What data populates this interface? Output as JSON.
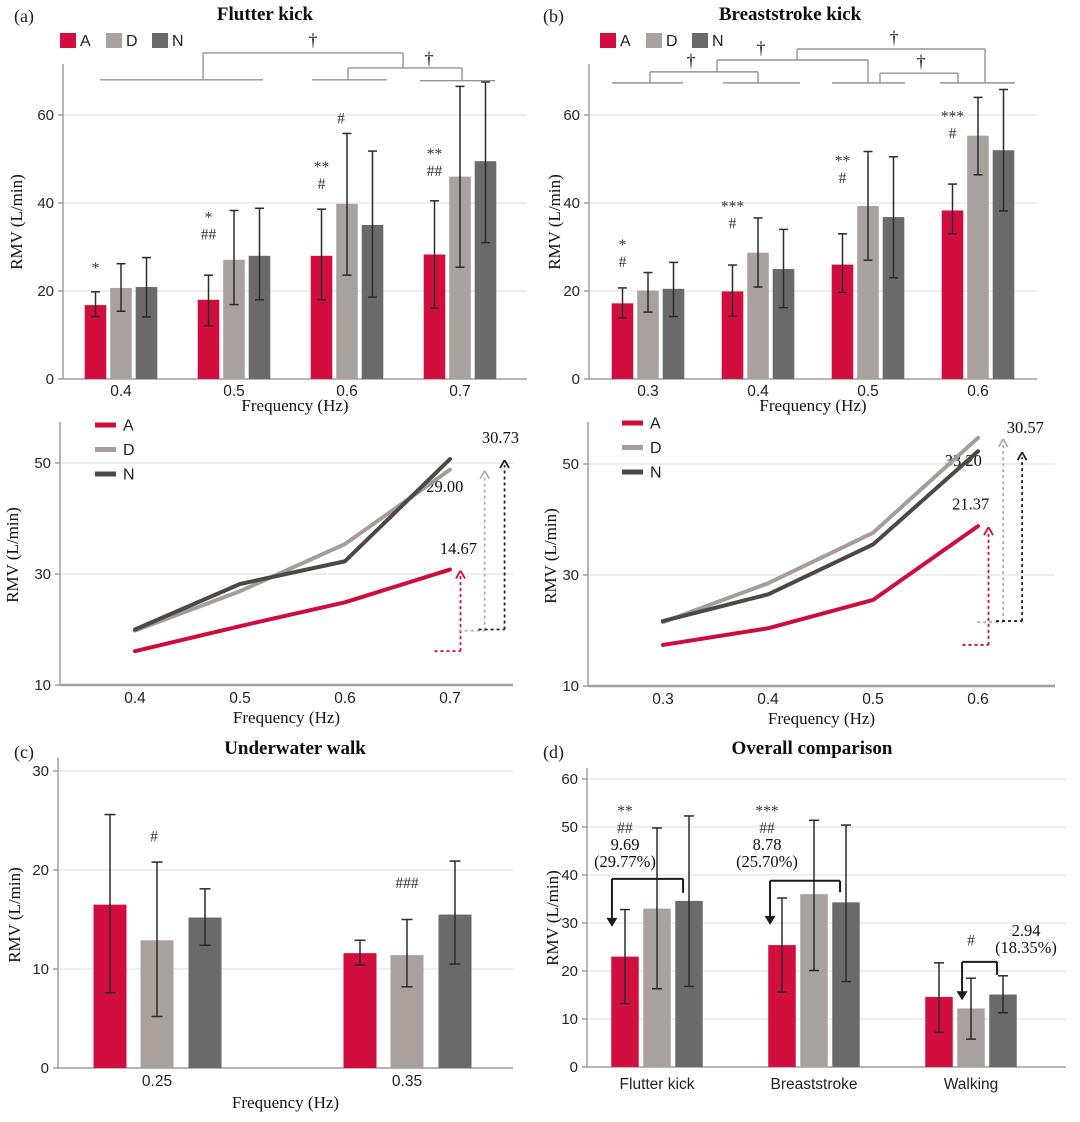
{
  "figure": {
    "panels": {
      "a": {
        "label": "(a)",
        "title": "Flutter kick"
      },
      "b": {
        "label": "(b)",
        "title": "Breaststroke kick"
      },
      "c": {
        "label": "(c)",
        "title": "Underwater walk"
      },
      "d": {
        "label": "(d)",
        "title": "Overall comparison"
      }
    },
    "shared": {
      "ylabel": "RMV (L/min)",
      "xlabel": "Frequency (Hz)",
      "legend": [
        "A",
        "D",
        "N"
      ]
    },
    "colors": {
      "A": "#d20e3f",
      "D": "#a8a19d",
      "N": "#6a6a6a",
      "A_line": "#ce0d3d",
      "D_line": "#a49d99",
      "N_line": "#4c4848",
      "arrow": {
        "A": "#cf0d3d",
        "D": "#b3adaa",
        "N": "#222222"
      },
      "error": "#2d2a2a",
      "grid": "#dcdcdc",
      "axis": "#9f9f9f",
      "bracket": "#949494",
      "bracket_dark": "#1c1c1c",
      "text": "#1a1a1a"
    }
  },
  "chart_data": [
    {
      "id": "a-bar",
      "type": "bar",
      "panel": "a",
      "title": "Flutter kick",
      "xlabel": "Frequency (Hz)",
      "ylabel": "RMV (L/min)",
      "categories": [
        "0.4",
        "0.5",
        "0.6",
        "0.7"
      ],
      "yticks": [
        0,
        20,
        40,
        60
      ],
      "ylim": [
        0,
        65
      ],
      "legend": [
        "A",
        "D",
        "N"
      ],
      "series": [
        {
          "name": "A",
          "values": [
            16.8,
            18.0,
            28.0,
            28.3
          ],
          "err_low": [
            14.2,
            12.1,
            18.0,
            16.1
          ],
          "err_high": [
            19.8,
            23.6,
            38.6,
            40.5
          ]
        },
        {
          "name": "D",
          "values": [
            20.7,
            27.1,
            39.8,
            46.0
          ],
          "err_low": [
            15.4,
            16.9,
            23.6,
            25.4
          ],
          "err_high": [
            26.2,
            38.3,
            55.8,
            66.5
          ]
        },
        {
          "name": "N",
          "values": [
            20.9,
            28.0,
            35.0,
            49.5
          ],
          "err_low": [
            14.1,
            18.0,
            18.6,
            31.0
          ],
          "err_high": [
            27.6,
            38.8,
            51.8,
            67.5
          ]
        }
      ],
      "sig_labels": [
        {
          "group": 0,
          "series": "A",
          "dx": 0,
          "top": 27,
          "lines": [
            "*"
          ]
        },
        {
          "group": 1,
          "series": "A",
          "dx": 0,
          "top": 38.5,
          "lines": [
            "*",
            "##"
          ]
        },
        {
          "group": 2,
          "series": "A",
          "dx": 0,
          "top": 50,
          "lines": [
            "**",
            "#"
          ]
        },
        {
          "group": 2,
          "series": "D",
          "dx": -6,
          "top": 61,
          "lines": [
            "#"
          ]
        },
        {
          "group": 3,
          "series": "A",
          "dx": 0,
          "top": 53,
          "lines": [
            "**",
            "##"
          ]
        }
      ],
      "brackets": {
        "style": "gray",
        "segments": [
          [
            -0.186,
            68.0,
            1.257,
            68.0
          ],
          [
            0.726,
            68.0,
            0.726,
            74.1
          ],
          [
            0.726,
            74.1,
            2.496,
            74.1
          ],
          [
            2.496,
            74.1,
            2.496,
            70.7
          ],
          [
            2.009,
            70.7,
            3.018,
            70.7
          ],
          [
            2.009,
            70.7,
            2.009,
            68.0
          ],
          [
            1.69,
            68.0,
            2.354,
            68.0
          ],
          [
            3.018,
            70.7,
            3.018,
            67.8
          ],
          [
            2.646,
            67.8,
            3.31,
            67.8
          ]
        ],
        "daggers": [
          {
            "x": 1.699,
            "y": 77.0,
            "glyph": "†"
          },
          {
            "x": 2.726,
            "y": 72.8,
            "glyph": "†"
          }
        ],
        "arrows": []
      }
    },
    {
      "id": "b-bar",
      "type": "bar",
      "panel": "b",
      "title": "Breaststroke kick",
      "xlabel": "Frequency (Hz)",
      "ylabel": "RMV (L/min)",
      "categories": [
        "0.3",
        "0.4",
        "0.5",
        "0.6"
      ],
      "yticks": [
        0,
        20,
        40,
        60
      ],
      "ylim": [
        0,
        65
      ],
      "legend": [
        "A",
        "D",
        "N"
      ],
      "series": [
        {
          "name": "A",
          "values": [
            17.2,
            19.9,
            26.0,
            38.3
          ],
          "err_low": [
            13.9,
            14.3,
            19.7,
            33.0
          ],
          "err_high": [
            20.7,
            25.9,
            33.0,
            44.3
          ]
        },
        {
          "name": "D",
          "values": [
            20.1,
            28.7,
            39.3,
            55.3
          ],
          "err_low": [
            15.2,
            20.9,
            27.0,
            46.4
          ],
          "err_high": [
            24.2,
            36.6,
            51.7,
            64.0
          ]
        },
        {
          "name": "N",
          "values": [
            20.5,
            25.0,
            36.8,
            52.0
          ],
          "err_low": [
            14.2,
            16.2,
            23.0,
            38.2
          ],
          "err_high": [
            26.5,
            34.0,
            50.5,
            65.8
          ]
        }
      ],
      "sig_labels": [
        {
          "group": 0,
          "series": "A",
          "dx": 0,
          "top": 32.3,
          "lines": [
            "*",
            "#"
          ]
        },
        {
          "group": 1,
          "series": "A",
          "dx": 0,
          "top": 41,
          "lines": [
            "***",
            "#"
          ]
        },
        {
          "group": 2,
          "series": "A",
          "dx": 0,
          "top": 51.4,
          "lines": [
            "**",
            "#"
          ]
        },
        {
          "group": 3,
          "series": "A",
          "dx": 0,
          "top": 61.5,
          "lines": [
            "***",
            "#"
          ]
        }
      ],
      "brackets": {
        "style": "gray",
        "segments": [
          [
            -0.327,
            67.3,
            0.318,
            67.3
          ],
          [
            0.682,
            67.3,
            1.382,
            67.3
          ],
          [
            1.673,
            67.3,
            2.336,
            67.3
          ],
          [
            2.655,
            67.3,
            3.336,
            67.3
          ],
          [
            0.018,
            69.8,
            1.0,
            69.8
          ],
          [
            0.018,
            67.3,
            0.018,
            69.8
          ],
          [
            1.0,
            67.3,
            1.0,
            69.8
          ],
          [
            0.627,
            72.5,
            2.0,
            72.5
          ],
          [
            0.627,
            69.8,
            0.627,
            72.5
          ],
          [
            2.0,
            67.3,
            2.0,
            72.5
          ],
          [
            1.355,
            75.0,
            3.064,
            75.0
          ],
          [
            1.355,
            72.5,
            1.355,
            75.0
          ],
          [
            3.064,
            67.3,
            3.064,
            75.0
          ],
          [
            2.109,
            69.5,
            2.818,
            69.5
          ],
          [
            2.109,
            67.3,
            2.109,
            69.5
          ],
          [
            2.818,
            67.3,
            2.818,
            69.5
          ]
        ],
        "daggers": [
          {
            "x": 0.391,
            "y": 72.4,
            "glyph": "†"
          },
          {
            "x": 1.027,
            "y": 75.2,
            "glyph": "†"
          },
          {
            "x": 2.236,
            "y": 77.6,
            "glyph": "†"
          },
          {
            "x": 2.482,
            "y": 72.2,
            "glyph": "†"
          }
        ],
        "arrows": []
      }
    },
    {
      "id": "a-line",
      "type": "line",
      "panel": "a",
      "xlabel": "Frequency (Hz)",
      "ylabel": "RMV (L/min)",
      "x": [
        "0.4",
        "0.5",
        "0.6",
        "0.7"
      ],
      "yticks": [
        10,
        30,
        50
      ],
      "ylim": [
        10,
        57
      ],
      "legend": [
        "A",
        "D",
        "N"
      ],
      "series": [
        {
          "name": "A",
          "values": [
            16.1,
            20.6,
            24.9,
            30.8
          ]
        },
        {
          "name": "D",
          "values": [
            19.8,
            26.9,
            35.4,
            48.8
          ]
        },
        {
          "name": "N",
          "values": [
            20.0,
            28.2,
            32.3,
            50.7
          ]
        }
      ],
      "increase_arrows": [
        {
          "series": "A",
          "label": "14.67",
          "x": 3.1,
          "base": 16.1,
          "tip": 30.8,
          "label_x": 3.08,
          "label_v": 33.6
        },
        {
          "series": "D",
          "label": "29.00",
          "x": 3.33,
          "base": 19.8,
          "tip": 48.8,
          "label_x": 2.95,
          "label_v": 44.8
        },
        {
          "series": "N",
          "label": "30.73",
          "x": 3.52,
          "base": 20.0,
          "tip": 50.7,
          "label_x": 3.48,
          "label_v": 53.6
        }
      ]
    },
    {
      "id": "b-line",
      "type": "line",
      "panel": "b",
      "xlabel": "Frequency (Hz)",
      "ylabel": "RMV (L/min)",
      "x": [
        "0.3",
        "0.4",
        "0.5",
        "0.6"
      ],
      "yticks": [
        10,
        30,
        50
      ],
      "ylim": [
        10,
        57
      ],
      "legend": [
        "A",
        "D",
        "N"
      ],
      "series": [
        {
          "name": "A",
          "values": [
            17.4,
            20.4,
            25.5,
            38.8
          ]
        },
        {
          "name": "D",
          "values": [
            21.5,
            28.5,
            37.6,
            54.7
          ]
        },
        {
          "name": "N",
          "values": [
            21.7,
            26.5,
            35.5,
            52.3
          ]
        }
      ],
      "increase_arrows": [
        {
          "series": "A",
          "label": "21.37",
          "x": 3.1,
          "base": 17.4,
          "tip": 38.8,
          "label_x": 2.93,
          "label_v": 41.8
        },
        {
          "series": "D",
          "label": "33.20",
          "x": 3.24,
          "base": 21.5,
          "tip": 54.7,
          "label_x": 2.86,
          "label_v": 49.6
        },
        {
          "series": "N",
          "label": "30.57",
          "x": 3.42,
          "base": 21.7,
          "tip": 52.3,
          "label_x": 3.45,
          "label_v": 55.6
        }
      ]
    },
    {
      "id": "c-bar",
      "type": "bar",
      "panel": "c",
      "title": "Underwater walk",
      "xlabel": "Frequency (Hz)",
      "ylabel": "RMV (L/min)",
      "categories": [
        "0.25",
        "0.35"
      ],
      "yticks": [
        0,
        10,
        20,
        30
      ],
      "ylim": [
        0,
        32
      ],
      "legend": [
        "A",
        "D",
        "N"
      ],
      "series": [
        {
          "name": "A",
          "values": [
            16.5,
            11.6
          ],
          "err_low": [
            7.6,
            10.4
          ],
          "err_high": [
            25.6,
            12.9
          ]
        },
        {
          "name": "D",
          "values": [
            12.9,
            11.4
          ],
          "err_low": [
            5.2,
            8.2
          ],
          "err_high": [
            20.8,
            15.0
          ]
        },
        {
          "name": "N",
          "values": [
            15.2,
            15.5
          ],
          "err_low": [
            12.4,
            10.5
          ],
          "err_high": [
            18.1,
            20.9
          ]
        }
      ],
      "sig_labels": [
        {
          "group": 0,
          "series": "D",
          "dx": -3,
          "top": 24.2,
          "lines": [
            "#"
          ]
        },
        {
          "group": 1,
          "series": "D",
          "dx": 0,
          "top": 19.5,
          "lines": [
            "###"
          ]
        }
      ],
      "brackets": null
    },
    {
      "id": "d-bar",
      "type": "bar",
      "panel": "d",
      "title": "Overall comparison",
      "xlabel": "",
      "ylabel": "RMV (L/min)",
      "categories": [
        "Flutter kick",
        "Breaststroke",
        "Walking"
      ],
      "yticks": [
        0,
        10,
        20,
        30,
        40,
        50,
        60
      ],
      "ylim": [
        0,
        62
      ],
      "legend": [
        "A",
        "D",
        "N"
      ],
      "series": [
        {
          "name": "A",
          "values": [
            23.0,
            25.4,
            14.6
          ],
          "err_low": [
            13.2,
            15.6,
            7.2
          ],
          "err_high": [
            32.8,
            35.2,
            21.7
          ]
        },
        {
          "name": "D",
          "values": [
            33.0,
            36.0,
            12.2
          ],
          "err_low": [
            16.3,
            20.1,
            5.8
          ],
          "err_high": [
            49.8,
            51.4,
            18.5
          ]
        },
        {
          "name": "N",
          "values": [
            34.6,
            34.3,
            15.1
          ],
          "err_low": [
            16.8,
            17.8,
            11.3
          ],
          "err_high": [
            52.3,
            50.4,
            19.0
          ]
        }
      ],
      "sig_labels": [
        {
          "group": 0,
          "series": "A",
          "dx": 0,
          "top": 55,
          "lines": [
            "**",
            "##",
            "9.69",
            "(29.77%)"
          ]
        },
        {
          "group": 1,
          "series": "A",
          "dx": -15,
          "top": 55,
          "lines": [
            "***",
            "##",
            "8.78",
            "(25.70%)"
          ]
        },
        {
          "group": 2,
          "series": "D",
          "dx": 0,
          "top": 28,
          "lines": [
            "#"
          ]
        },
        {
          "group": 2,
          "series": "N",
          "dx": 23,
          "top": 30,
          "lines": [
            "2.94",
            "(18.35%)"
          ]
        }
      ],
      "brackets": {
        "style": "dark",
        "segments": [
          [
            -0.287,
            39.2,
            0.166,
            39.2
          ],
          [
            0.166,
            39.2,
            0.166,
            36.3
          ],
          [
            0.72,
            38.8,
            1.166,
            38.8
          ],
          [
            1.166,
            38.8,
            1.166,
            36.4
          ],
          [
            1.943,
            21.9,
            2.166,
            21.9
          ],
          [
            2.166,
            21.9,
            2.166,
            19.2
          ]
        ],
        "daggers": [],
        "arrows": [
          {
            "x": -0.287,
            "from": 39.2,
            "to": 29.2
          },
          {
            "x": 0.72,
            "from": 38.8,
            "to": 29.6
          },
          {
            "x": 1.943,
            "from": 21.9,
            "to": 13.9
          }
        ]
      }
    }
  ]
}
